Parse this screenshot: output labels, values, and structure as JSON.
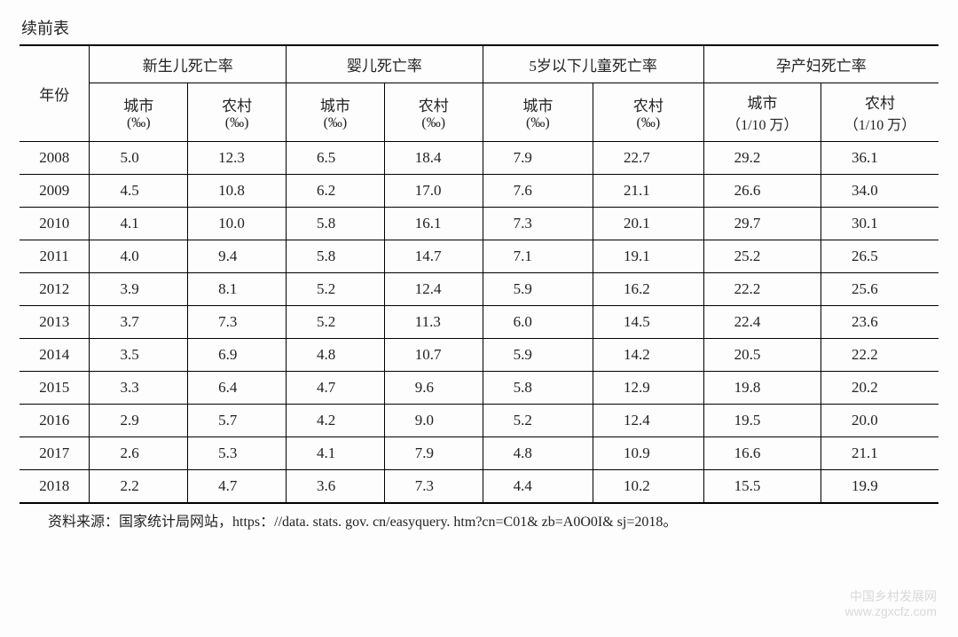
{
  "caption": "续前表",
  "year_header": "年份",
  "groups": [
    {
      "title": "新生儿死亡率",
      "urban_label": "城市",
      "rural_label": "农村",
      "urban_unit": "(‰)",
      "rural_unit": "(‰)"
    },
    {
      "title": "婴儿死亡率",
      "urban_label": "城市",
      "rural_label": "农村",
      "urban_unit": "(‰)",
      "rural_unit": "(‰)"
    },
    {
      "title": "5岁以下儿童死亡率",
      "urban_label": "城市",
      "rural_label": "农村",
      "urban_unit": "(‰)",
      "rural_unit": "(‰)"
    },
    {
      "title": "孕产妇死亡率",
      "urban_label": "城市",
      "rural_label": "农村",
      "urban_unit": "（1/10 万）",
      "rural_unit": "（1/10 万）"
    }
  ],
  "rows": [
    {
      "year": "2008",
      "g0u": "5.0",
      "g0r": "12.3",
      "g1u": "6.5",
      "g1r": "18.4",
      "g2u": "7.9",
      "g2r": "22.7",
      "g3u": "29.2",
      "g3r": "36.1"
    },
    {
      "year": "2009",
      "g0u": "4.5",
      "g0r": "10.8",
      "g1u": "6.2",
      "g1r": "17.0",
      "g2u": "7.6",
      "g2r": "21.1",
      "g3u": "26.6",
      "g3r": "34.0"
    },
    {
      "year": "2010",
      "g0u": "4.1",
      "g0r": "10.0",
      "g1u": "5.8",
      "g1r": "16.1",
      "g2u": "7.3",
      "g2r": "20.1",
      "g3u": "29.7",
      "g3r": "30.1"
    },
    {
      "year": "2011",
      "g0u": "4.0",
      "g0r": " 9.4",
      "g1u": "5.8",
      "g1r": "14.7",
      "g2u": "7.1",
      "g2r": "19.1",
      "g3u": "25.2",
      "g3r": "26.5"
    },
    {
      "year": "2012",
      "g0u": "3.9",
      "g0r": " 8.1",
      "g1u": "5.2",
      "g1r": "12.4",
      "g2u": "5.9",
      "g2r": "16.2",
      "g3u": "22.2",
      "g3r": "25.6"
    },
    {
      "year": "2013",
      "g0u": "3.7",
      "g0r": " 7.3",
      "g1u": "5.2",
      "g1r": "11.3",
      "g2u": "6.0",
      "g2r": "14.5",
      "g3u": "22.4",
      "g3r": "23.6"
    },
    {
      "year": "2014",
      "g0u": "3.5",
      "g0r": " 6.9",
      "g1u": "4.8",
      "g1r": "10.7",
      "g2u": "5.9",
      "g2r": "14.2",
      "g3u": "20.5",
      "g3r": "22.2"
    },
    {
      "year": "2015",
      "g0u": "3.3",
      "g0r": " 6.4",
      "g1u": "4.7",
      "g1r": " 9.6",
      "g2u": "5.8",
      "g2r": "12.9",
      "g3u": "19.8",
      "g3r": "20.2"
    },
    {
      "year": "2016",
      "g0u": "2.9",
      "g0r": " 5.7",
      "g1u": "4.2",
      "g1r": " 9.0",
      "g2u": "5.2",
      "g2r": "12.4",
      "g3u": "19.5",
      "g3r": "20.0"
    },
    {
      "year": "2017",
      "g0u": "2.6",
      "g0r": " 5.3",
      "g1u": "4.1",
      "g1r": " 7.9",
      "g2u": "4.8",
      "g2r": "10.9",
      "g3u": "16.6",
      "g3r": "21.1"
    },
    {
      "year": "2018",
      "g0u": "2.2",
      "g0r": " 4.7",
      "g1u": "3.6",
      "g1r": " 7.3",
      "g2u": "4.4",
      "g2r": "10.2",
      "g3u": "15.5",
      "g3r": "19.9"
    }
  ],
  "source": "资料来源：国家统计局网站，https：//data. stats. gov. cn/easyquery. htm?cn=C01& zb=A0O0I& sj=2018。",
  "watermark_top": "中国乡村发展网",
  "watermark_bottom": "www.zgxcfz.com",
  "colors": {
    "border": "#000000",
    "text": "#222222",
    "bg": "#fdfdfd"
  }
}
